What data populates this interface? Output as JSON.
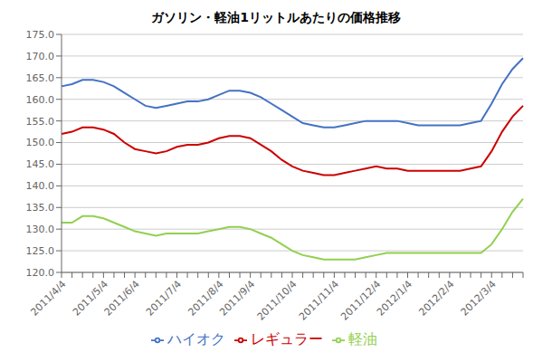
{
  "chart_data": {
    "type": "line",
    "title": "ガソリン・軽油1リットルあたりの価格推移",
    "categories": [
      "2011/4/4",
      null,
      null,
      null,
      "2011/5/4",
      null,
      null,
      "2011/6/4",
      null,
      null,
      null,
      "2011/7/4",
      null,
      null,
      null,
      "2011/8/4",
      null,
      null,
      "2011/9/4",
      null,
      null,
      null,
      "2011/10/4",
      null,
      null,
      null,
      "2011/11/4",
      null,
      null,
      null,
      "2011/12/4",
      null,
      null,
      "2012/1/4",
      null,
      null,
      null,
      "2012/2/4",
      null,
      null,
      null,
      "2012/3/4",
      null,
      null,
      null
    ],
    "series": [
      {
        "name": "ハイオク",
        "color": "#4472C4",
        "values": [
          163.0,
          163.5,
          164.5,
          164.5,
          164.0,
          163.0,
          161.5,
          160.0,
          158.5,
          158.0,
          158.5,
          159.0,
          159.5,
          159.5,
          160.0,
          161.0,
          162.0,
          162.0,
          161.5,
          160.5,
          159.0,
          157.5,
          156.0,
          154.5,
          154.0,
          153.5,
          153.5,
          154.0,
          154.5,
          155.0,
          155.0,
          155.0,
          155.0,
          154.5,
          154.0,
          154.0,
          154.0,
          154.0,
          154.0,
          154.5,
          155.0,
          159.0,
          163.5,
          167.0,
          169.5
        ]
      },
      {
        "name": "レギュラー",
        "color": "#CC0000",
        "values": [
          152.0,
          152.5,
          153.5,
          153.5,
          153.0,
          152.0,
          150.0,
          148.5,
          148.0,
          147.5,
          148.0,
          149.0,
          149.5,
          149.5,
          150.0,
          151.0,
          151.5,
          151.5,
          151.0,
          149.5,
          148.0,
          146.0,
          144.5,
          143.5,
          143.0,
          142.5,
          142.5,
          143.0,
          143.5,
          144.0,
          144.5,
          144.0,
          144.0,
          143.5,
          143.5,
          143.5,
          143.5,
          143.5,
          143.5,
          144.0,
          144.5,
          148.0,
          152.5,
          156.0,
          158.5
        ]
      },
      {
        "name": "軽油",
        "color": "#92D050",
        "values": [
          131.5,
          131.5,
          133.0,
          133.0,
          132.5,
          131.5,
          130.5,
          129.5,
          129.0,
          128.5,
          129.0,
          129.0,
          129.0,
          129.0,
          129.5,
          130.0,
          130.5,
          130.5,
          130.0,
          129.0,
          128.0,
          126.5,
          125.0,
          124.0,
          123.5,
          123.0,
          123.0,
          123.0,
          123.0,
          123.5,
          124.0,
          124.5,
          124.5,
          124.5,
          124.5,
          124.5,
          124.5,
          124.5,
          124.5,
          124.5,
          124.5,
          126.5,
          130.0,
          134.0,
          137.0
        ]
      }
    ],
    "ylim": [
      120.0,
      175.0
    ],
    "yticks": [
      {
        "value": 120.0,
        "label": "120.0"
      },
      {
        "value": 125.0,
        "label": "125.0"
      },
      {
        "value": 130.0,
        "label": "130.0"
      },
      {
        "value": 135.0,
        "label": "135.0"
      },
      {
        "value": 140.0,
        "label": "140.0"
      },
      {
        "value": 145.0,
        "label": "145.0"
      },
      {
        "value": 150.0,
        "label": "150.0"
      },
      {
        "value": 155.0,
        "label": "155.0"
      },
      {
        "value": 160.0,
        "label": "160.0"
      },
      {
        "value": 165.0,
        "label": "165.0"
      },
      {
        "value": 170.0,
        "label": "170.0"
      },
      {
        "value": 175.0,
        "label": "175.0"
      }
    ],
    "grid": true,
    "legend": "bottom"
  }
}
